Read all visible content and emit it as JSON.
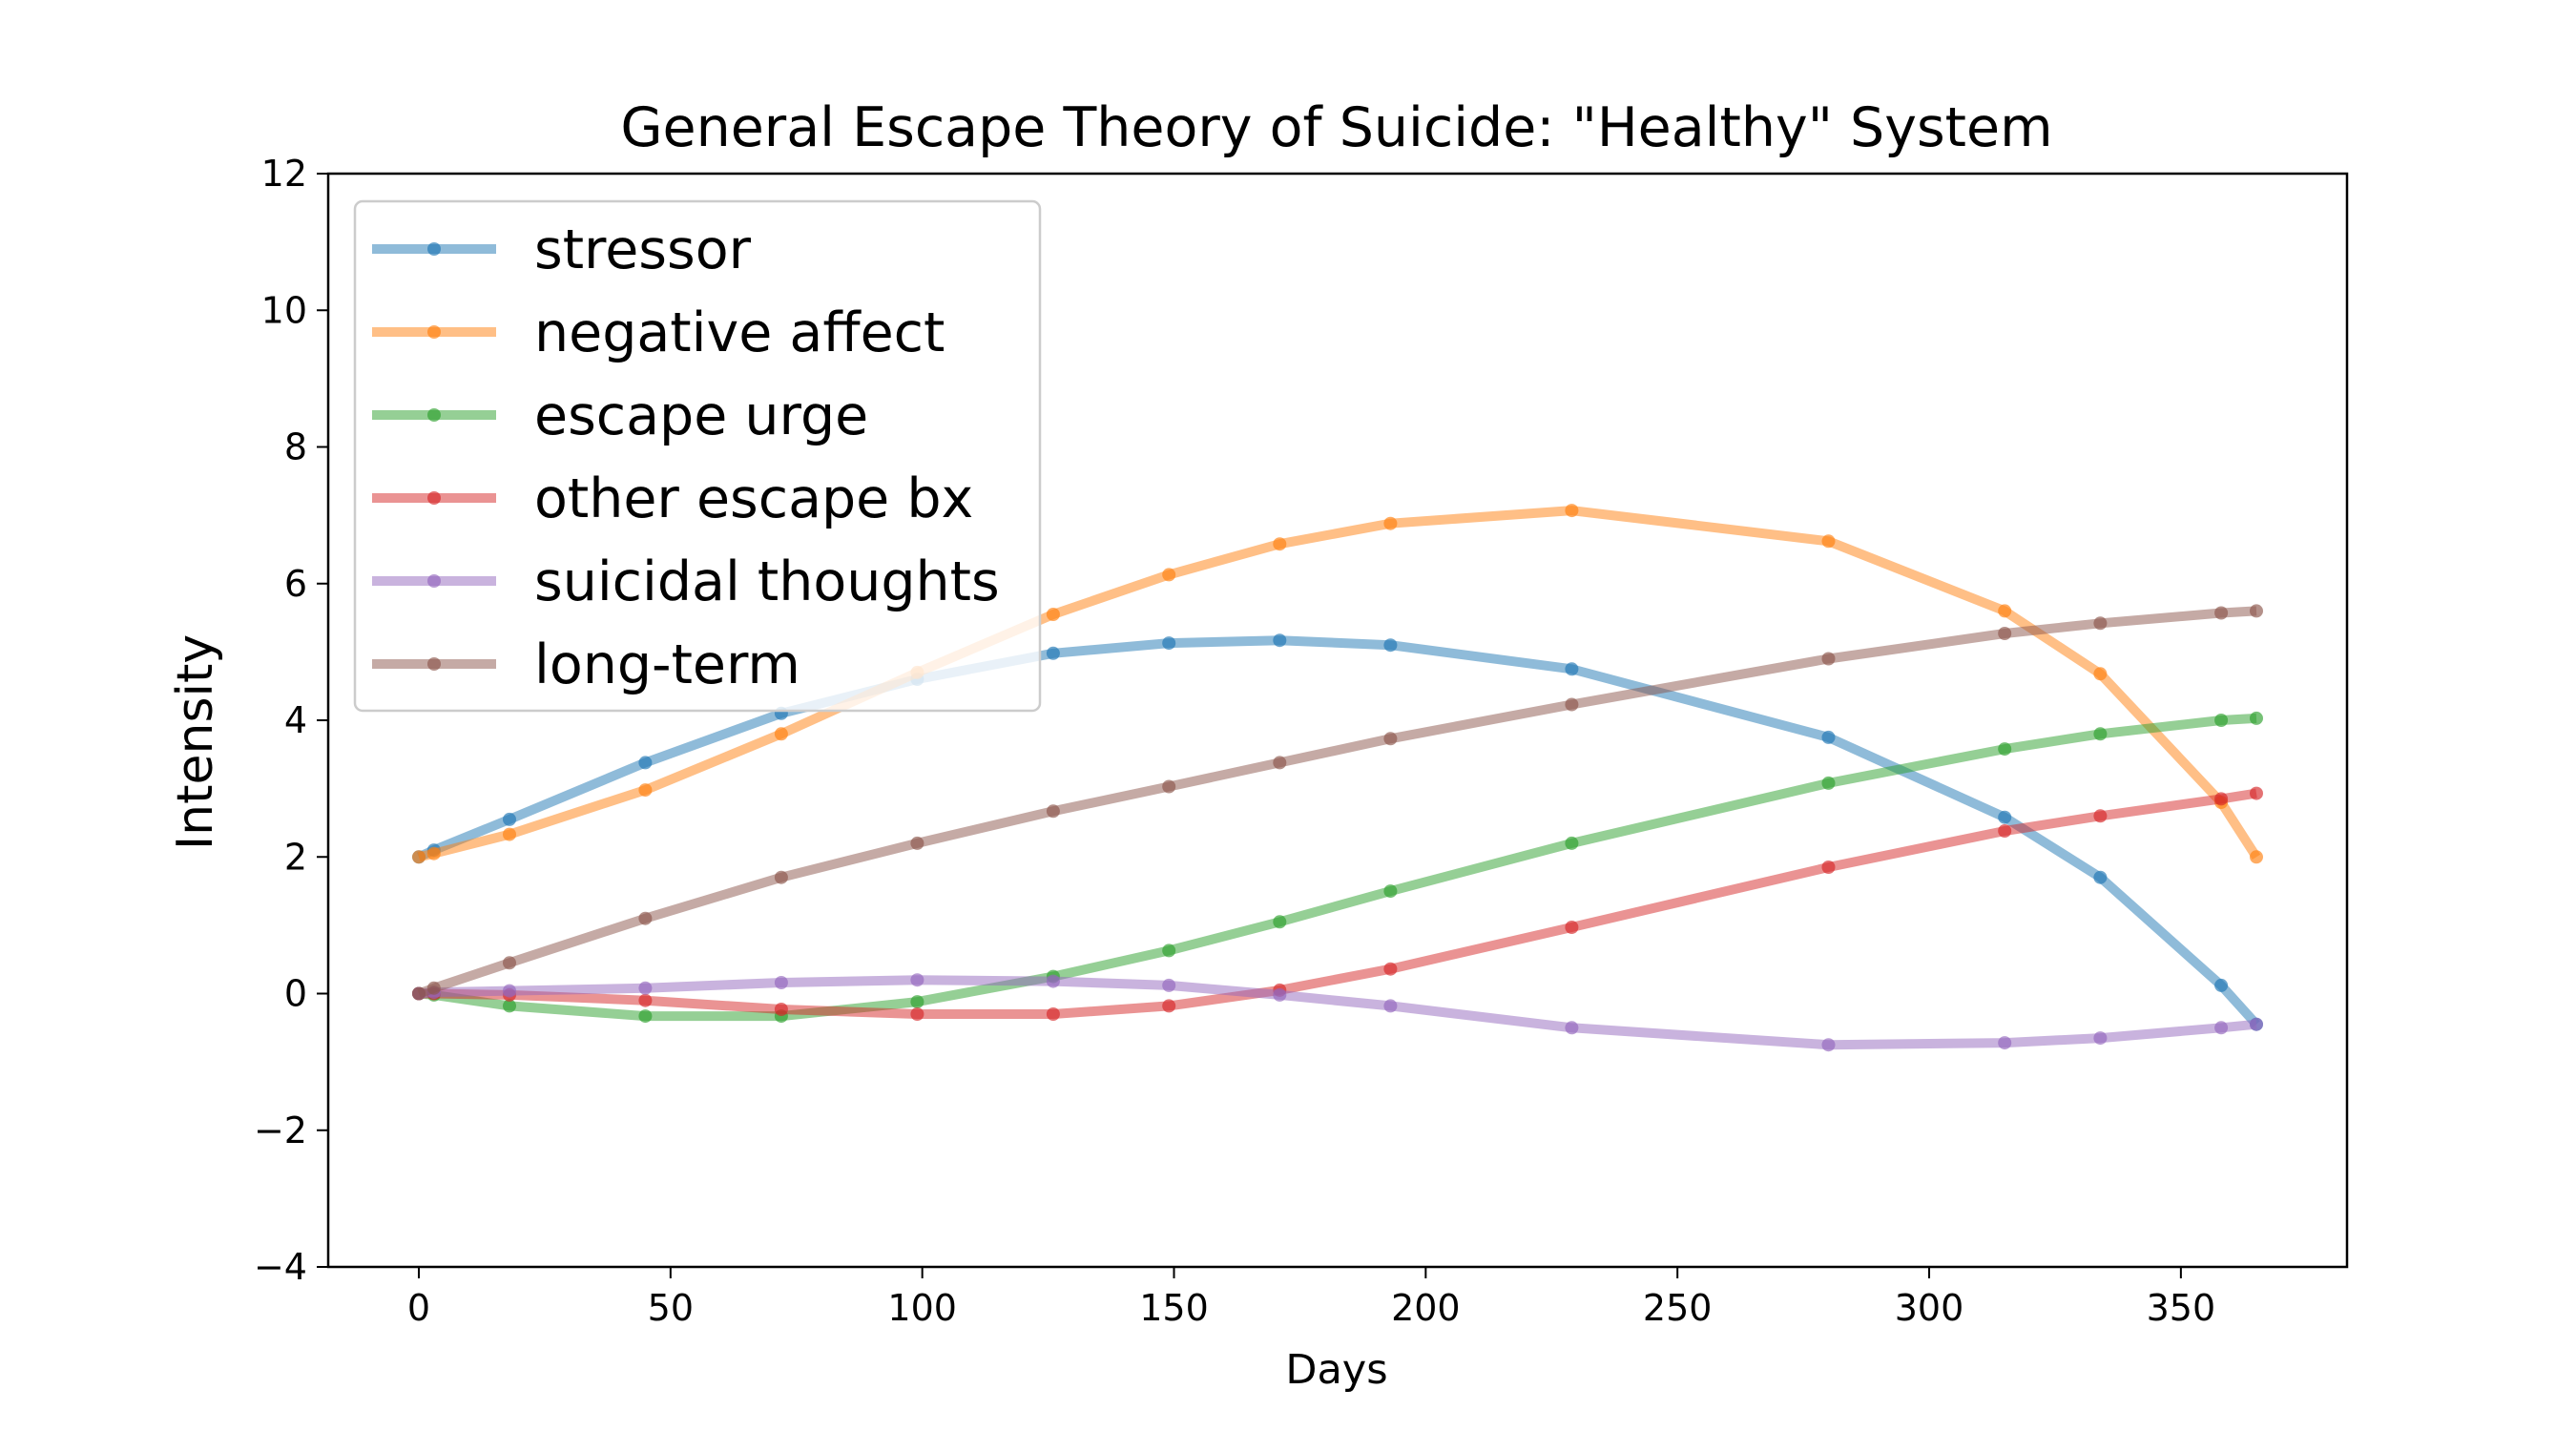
{
  "chart_data": {
    "type": "line",
    "title": "General Escape Theory of Suicide: \"Healthy\" System",
    "xlabel": "Days",
    "ylabel": "Intensity",
    "xlim": [
      -18,
      383
    ],
    "ylim": [
      -4,
      12
    ],
    "xticks": [
      0,
      50,
      100,
      150,
      200,
      250,
      300,
      350
    ],
    "yticks": [
      -4,
      -2,
      0,
      2,
      4,
      6,
      8,
      10,
      12
    ],
    "ytick_labels": [
      "−4",
      "−2",
      "0",
      "2",
      "4",
      "6",
      "8",
      "10",
      "12"
    ],
    "grid": false,
    "legend_position": "top-left",
    "x": [
      0,
      3,
      18,
      45,
      72,
      99,
      126,
      149,
      171,
      193,
      229,
      280,
      315,
      334,
      358,
      365
    ],
    "series": [
      {
        "name": "stressor",
        "color": "#1f77b4",
        "values": [
          2.0,
          2.1,
          2.55,
          3.38,
          4.1,
          4.6,
          4.98,
          5.13,
          5.17,
          5.1,
          4.75,
          3.75,
          2.58,
          1.7,
          0.12,
          -0.45
        ]
      },
      {
        "name": "negative affect",
        "color": "#ff7f0e",
        "values": [
          2.0,
          2.05,
          2.33,
          2.98,
          3.8,
          4.7,
          5.55,
          6.13,
          6.58,
          6.88,
          7.07,
          6.62,
          5.6,
          4.68,
          2.8,
          2.0
        ]
      },
      {
        "name": "escape urge",
        "color": "#2ca02c",
        "values": [
          0.0,
          -0.02,
          -0.18,
          -0.33,
          -0.33,
          -0.12,
          0.25,
          0.63,
          1.05,
          1.5,
          2.2,
          3.08,
          3.58,
          3.8,
          4.0,
          4.03
        ]
      },
      {
        "name": "other escape bx",
        "color": "#d62728",
        "values": [
          0.0,
          0.0,
          -0.02,
          -0.1,
          -0.23,
          -0.3,
          -0.3,
          -0.18,
          0.05,
          0.36,
          0.97,
          1.85,
          2.38,
          2.6,
          2.85,
          2.93
        ]
      },
      {
        "name": "suicidal thoughts",
        "color": "#9467bd",
        "values": [
          0.0,
          0.02,
          0.04,
          0.08,
          0.16,
          0.2,
          0.18,
          0.12,
          -0.02,
          -0.18,
          -0.5,
          -0.75,
          -0.72,
          -0.65,
          -0.5,
          -0.45
        ]
      },
      {
        "name": "long-term",
        "color": "#8c564b",
        "values": [
          0.0,
          0.08,
          0.45,
          1.1,
          1.7,
          2.2,
          2.67,
          3.03,
          3.38,
          3.73,
          4.23,
          4.9,
          5.27,
          5.42,
          5.57,
          5.6
        ]
      }
    ]
  }
}
